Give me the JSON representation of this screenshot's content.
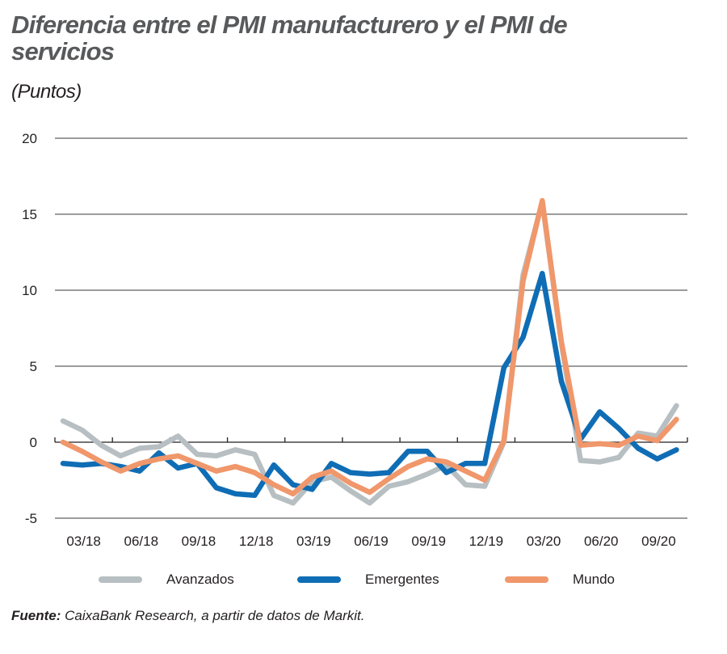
{
  "header": {
    "title": "Diferencia entre el PMI manufacturero y el PMI de servicios",
    "subtitle": "(Puntos)"
  },
  "source": {
    "label": "Fuente:",
    "text": " CaixaBank Research, a partir de datos de Markit."
  },
  "colors": {
    "avanzados": "#b7bfc2",
    "emergentes": "#0f6db5",
    "mundo": "#f0976b",
    "grid": "#3a3a3a",
    "axis": "#231f20"
  },
  "chart_data": {
    "type": "line",
    "title": "Diferencia entre el PMI manufacturero y el PMI de servicios",
    "subtitle": "(Puntos)",
    "xlabel": "",
    "ylabel": "Puntos",
    "ylim": [
      -5,
      20
    ],
    "yticks": [
      20,
      15,
      10,
      5,
      0,
      -5
    ],
    "grid": true,
    "legend_position": "bottom",
    "xtick_labels": [
      "03/18",
      "06/18",
      "09/18",
      "12/18",
      "03/19",
      "06/19",
      "09/19",
      "12/19",
      "03/20",
      "06/20",
      "09/20"
    ],
    "x": [
      "03/18",
      "04/18",
      "05/18",
      "06/18",
      "07/18",
      "08/18",
      "09/18",
      "10/18",
      "11/18",
      "12/18",
      "01/19",
      "02/19",
      "03/19",
      "04/19",
      "05/19",
      "06/19",
      "07/19",
      "08/19",
      "09/19",
      "10/19",
      "11/19",
      "12/19",
      "01/20",
      "02/20",
      "03/20",
      "04/20",
      "05/20",
      "06/20",
      "07/20",
      "08/20",
      "09/20",
      "10/20",
      "11/20"
    ],
    "series": [
      {
        "name": "Avanzados",
        "color": "#b7bfc2",
        "values": [
          1.4,
          0.8,
          -0.2,
          -0.9,
          -0.4,
          -0.3,
          0.4,
          -0.8,
          -0.9,
          -0.5,
          -0.8,
          -3.5,
          -4.0,
          -2.6,
          -2.3,
          -3.2,
          -4.0,
          -2.9,
          -2.6,
          -2.1,
          -1.5,
          -2.8,
          -2.9,
          0.0,
          11.0,
          15.8,
          6.5,
          -1.2,
          -1.3,
          -1.0,
          0.6,
          0.4,
          2.4
        ]
      },
      {
        "name": "Emergentes",
        "color": "#0f6db5",
        "values": [
          -1.4,
          -1.5,
          -1.4,
          -1.6,
          -1.9,
          -0.7,
          -1.7,
          -1.4,
          -3.0,
          -3.4,
          -3.5,
          -1.5,
          -2.8,
          -3.1,
          -1.4,
          -2.0,
          -2.1,
          -2.0,
          -0.6,
          -0.6,
          -2.0,
          -1.4,
          -1.4,
          4.9,
          6.9,
          11.1,
          4.0,
          0.2,
          2.0,
          0.9,
          -0.4,
          -1.1,
          -0.5
        ]
      },
      {
        "name": "Mundo",
        "color": "#f0976b",
        "values": [
          0.0,
          -0.6,
          -1.3,
          -1.9,
          -1.4,
          -1.1,
          -0.9,
          -1.4,
          -1.9,
          -1.6,
          -2.0,
          -2.8,
          -3.4,
          -2.3,
          -1.9,
          -2.7,
          -3.3,
          -2.4,
          -1.6,
          -1.1,
          -1.3,
          -1.9,
          -2.5,
          0.1,
          10.6,
          15.9,
          6.6,
          -0.2,
          -0.1,
          -0.2,
          0.4,
          0.1,
          1.5
        ]
      }
    ]
  }
}
